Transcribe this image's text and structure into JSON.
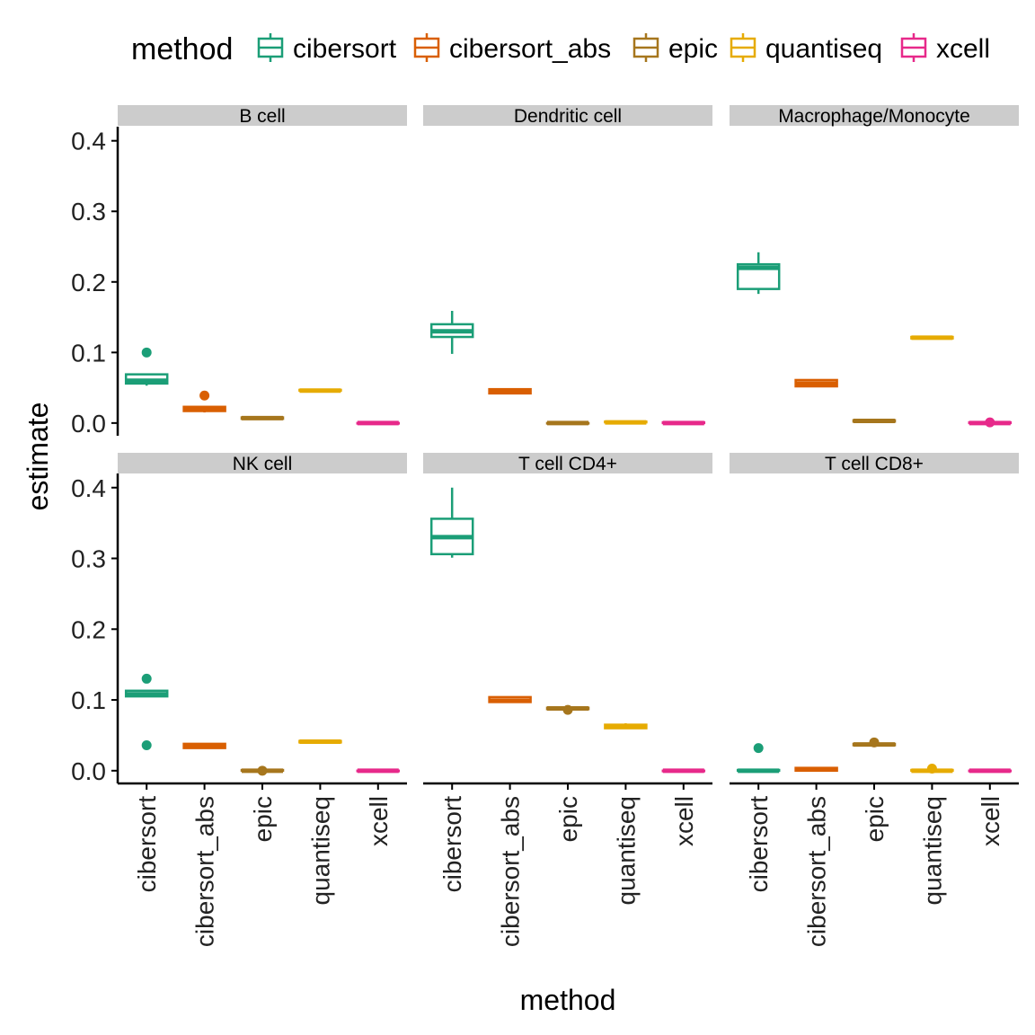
{
  "chart_data": {
    "type": "boxplot",
    "xlabel": "method",
    "ylabel": "estimate",
    "ylim": [
      -0.018,
      0.42
    ],
    "yticks": [
      0.0,
      0.1,
      0.2,
      0.3,
      0.4
    ],
    "ytick_labels": [
      "0.0",
      "0.1",
      "0.2",
      "0.3",
      "0.4"
    ],
    "grid": false,
    "legend": {
      "title": "method",
      "position": "top",
      "entries": [
        {
          "name": "cibersort",
          "color": "#1b9e77"
        },
        {
          "name": "cibersort_abs",
          "color": "#d95f02"
        },
        {
          "name": "epic",
          "color": "#a6761d"
        },
        {
          "name": "quantiseq",
          "color": "#e6ab02"
        },
        {
          "name": "xcell",
          "color": "#e7298a"
        }
      ]
    },
    "categories": [
      "cibersort",
      "cibersort_abs",
      "epic",
      "quantiseq",
      "xcell"
    ],
    "facets": [
      {
        "title": "B cell",
        "boxes": [
          {
            "method": "cibersort",
            "whisker_low": 0.053,
            "q1": 0.056,
            "median": 0.06,
            "q3": 0.069,
            "whisker_high": 0.069,
            "outliers": [
              0.1
            ]
          },
          {
            "method": "cibersort_abs",
            "whisker_low": 0.015,
            "q1": 0.017,
            "median": 0.02,
            "q3": 0.023,
            "whisker_high": 0.023,
            "outliers": [
              0.039
            ]
          },
          {
            "method": "epic",
            "whisker_low": 0.006,
            "q1": 0.006,
            "median": 0.007,
            "q3": 0.008,
            "whisker_high": 0.008,
            "outliers": []
          },
          {
            "method": "quantiseq",
            "whisker_low": 0.045,
            "q1": 0.046,
            "median": 0.046,
            "q3": 0.047,
            "whisker_high": 0.047,
            "outliers": []
          },
          {
            "method": "xcell",
            "whisker_low": 0.0,
            "q1": 0.0,
            "median": 0.0,
            "q3": 0.0,
            "whisker_high": 0.0,
            "outliers": []
          }
        ]
      },
      {
        "title": "Dendritic cell",
        "boxes": [
          {
            "method": "cibersort",
            "whisker_low": 0.098,
            "q1": 0.122,
            "median": 0.13,
            "q3": 0.14,
            "whisker_high": 0.159,
            "outliers": []
          },
          {
            "method": "cibersort_abs",
            "whisker_low": 0.041,
            "q1": 0.042,
            "median": 0.045,
            "q3": 0.048,
            "whisker_high": 0.048,
            "outliers": []
          },
          {
            "method": "epic",
            "whisker_low": 0.0,
            "q1": 0.0,
            "median": 0.0,
            "q3": 0.0,
            "whisker_high": 0.0,
            "outliers": []
          },
          {
            "method": "quantiseq",
            "whisker_low": 0.0,
            "q1": 0.001,
            "median": 0.001,
            "q3": 0.002,
            "whisker_high": 0.002,
            "outliers": []
          },
          {
            "method": "xcell",
            "whisker_low": 0.0,
            "q1": 0.0,
            "median": 0.0,
            "q3": 0.001,
            "whisker_high": 0.001,
            "outliers": []
          }
        ]
      },
      {
        "title": "Macrophage/Monocyte",
        "boxes": [
          {
            "method": "cibersort",
            "whisker_low": 0.183,
            "q1": 0.19,
            "median": 0.22,
            "q3": 0.225,
            "whisker_high": 0.242,
            "outliers": []
          },
          {
            "method": "cibersort_abs",
            "whisker_low": 0.052,
            "q1": 0.052,
            "median": 0.056,
            "q3": 0.061,
            "whisker_high": 0.061,
            "outliers": []
          },
          {
            "method": "epic",
            "whisker_low": 0.002,
            "q1": 0.002,
            "median": 0.003,
            "q3": 0.004,
            "whisker_high": 0.004,
            "outliers": []
          },
          {
            "method": "quantiseq",
            "whisker_low": 0.12,
            "q1": 0.12,
            "median": 0.121,
            "q3": 0.122,
            "whisker_high": 0.122,
            "outliers": []
          },
          {
            "method": "xcell",
            "whisker_low": 0.0,
            "q1": 0.0,
            "median": 0.0,
            "q3": 0.001,
            "whisker_high": 0.001,
            "outliers": [
              0.001
            ]
          }
        ]
      },
      {
        "title": "NK cell",
        "boxes": [
          {
            "method": "cibersort",
            "whisker_low": 0.104,
            "q1": 0.105,
            "median": 0.108,
            "q3": 0.113,
            "whisker_high": 0.113,
            "outliers": [
              0.13,
              0.036
            ]
          },
          {
            "method": "cibersort_abs",
            "whisker_low": 0.031,
            "q1": 0.032,
            "median": 0.034,
            "q3": 0.038,
            "whisker_high": 0.039,
            "outliers": []
          },
          {
            "method": "epic",
            "whisker_low": 0.0,
            "q1": 0.0,
            "median": 0.0,
            "q3": 0.001,
            "whisker_high": 0.001,
            "outliers": [
              0.0
            ]
          },
          {
            "method": "quantiseq",
            "whisker_low": 0.04,
            "q1": 0.04,
            "median": 0.041,
            "q3": 0.042,
            "whisker_high": 0.042,
            "outliers": []
          },
          {
            "method": "xcell",
            "whisker_low": 0.0,
            "q1": 0.0,
            "median": 0.0,
            "q3": 0.0,
            "whisker_high": 0.0,
            "outliers": []
          }
        ]
      },
      {
        "title": "T cell CD4+",
        "boxes": [
          {
            "method": "cibersort",
            "whisker_low": 0.301,
            "q1": 0.306,
            "median": 0.33,
            "q3": 0.356,
            "whisker_high": 0.4,
            "outliers": []
          },
          {
            "method": "cibersort_abs",
            "whisker_low": 0.097,
            "q1": 0.097,
            "median": 0.099,
            "q3": 0.104,
            "whisker_high": 0.104,
            "outliers": []
          },
          {
            "method": "epic",
            "whisker_low": 0.087,
            "q1": 0.087,
            "median": 0.088,
            "q3": 0.089,
            "whisker_high": 0.089,
            "outliers": [
              0.086
            ]
          },
          {
            "method": "quantiseq",
            "whisker_low": 0.06,
            "q1": 0.06,
            "median": 0.062,
            "q3": 0.065,
            "whisker_high": 0.067,
            "outliers": []
          },
          {
            "method": "xcell",
            "whisker_low": 0.0,
            "q1": 0.0,
            "median": 0.0,
            "q3": 0.0,
            "whisker_high": 0.0,
            "outliers": []
          }
        ]
      },
      {
        "title": "T cell CD8+",
        "boxes": [
          {
            "method": "cibersort",
            "whisker_low": 0.0,
            "q1": 0.0,
            "median": 0.0,
            "q3": 0.001,
            "whisker_high": 0.001,
            "outliers": [
              0.032
            ]
          },
          {
            "method": "cibersort_abs",
            "whisker_low": 0.0,
            "q1": 0.0,
            "median": 0.002,
            "q3": 0.004,
            "whisker_high": 0.004,
            "outliers": []
          },
          {
            "method": "epic",
            "whisker_low": 0.036,
            "q1": 0.036,
            "median": 0.037,
            "q3": 0.038,
            "whisker_high": 0.038,
            "outliers": [
              0.04
            ]
          },
          {
            "method": "quantiseq",
            "whisker_low": 0.0,
            "q1": 0.0,
            "median": 0.0,
            "q3": 0.001,
            "whisker_high": 0.001,
            "outliers": [
              0.003
            ]
          },
          {
            "method": "xcell",
            "whisker_low": 0.0,
            "q1": 0.0,
            "median": 0.0,
            "q3": 0.0,
            "whisker_high": 0.0,
            "outliers": []
          }
        ]
      }
    ]
  }
}
